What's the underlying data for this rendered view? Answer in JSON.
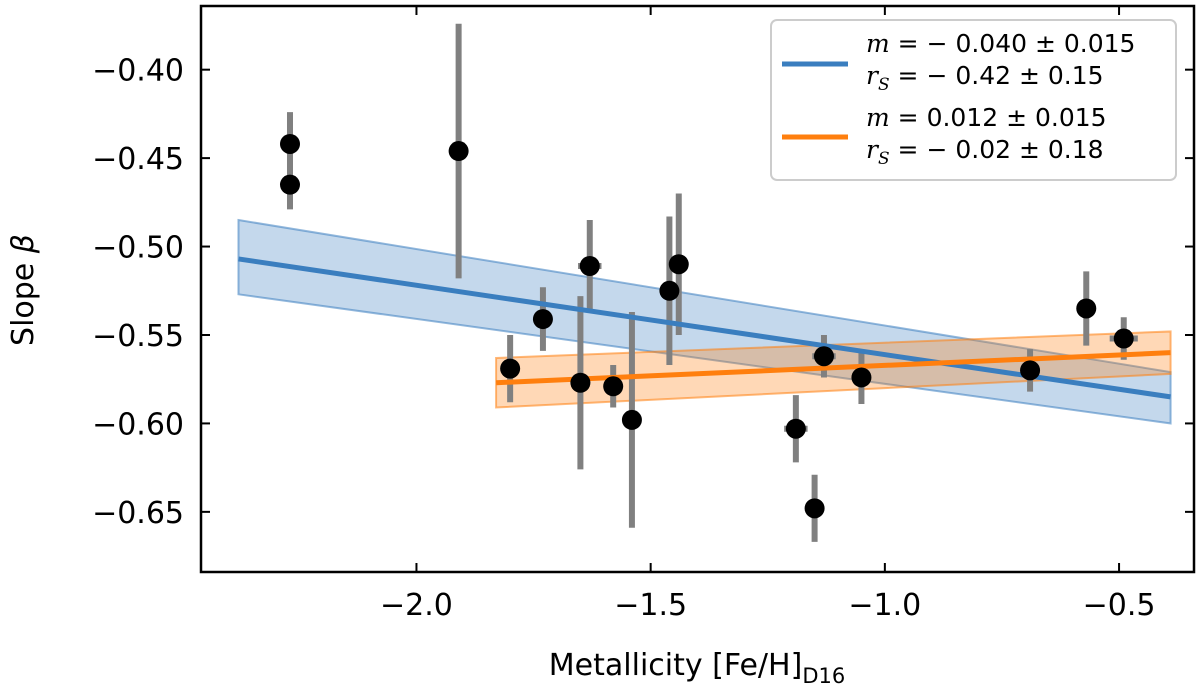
{
  "chart_data": {
    "type": "scatter",
    "xlabel_main": "Metallicity [Fe/H]",
    "xlabel_sub": "D16",
    "ylabel_main": "Slope ",
    "ylabel_symbol": "β",
    "xlim": [
      -2.46,
      -0.34
    ],
    "ylim": [
      -0.684,
      -0.364
    ],
    "xticks": [
      -2.0,
      -1.5,
      -1.0,
      -0.5
    ],
    "xtick_labels": [
      "−2.0",
      "−1.5",
      "−1.0",
      "−0.5"
    ],
    "yticks": [
      -0.4,
      -0.45,
      -0.5,
      -0.55,
      -0.6,
      -0.65
    ],
    "ytick_labels": [
      "−0.40",
      "−0.45",
      "−0.50",
      "−0.55",
      "−0.60",
      "−0.65"
    ],
    "colors": {
      "points": "#000000",
      "errorbars": "#808080",
      "blue": "#3a7ebf",
      "orange": "#ff7f0e"
    },
    "points": [
      {
        "x": -2.27,
        "y": -0.442,
        "xerr": 0.02,
        "yerr": 0.018
      },
      {
        "x": -2.27,
        "y": -0.465,
        "xerr": 0.0,
        "yerr": 0.014
      },
      {
        "x": -1.91,
        "y": -0.446,
        "xerr": 0.0,
        "yerr": 0.072
      },
      {
        "x": -1.8,
        "y": -0.569,
        "xerr": 0.0,
        "yerr": 0.019
      },
      {
        "x": -1.73,
        "y": -0.541,
        "xerr": 0.02,
        "yerr": 0.018
      },
      {
        "x": -1.65,
        "y": -0.577,
        "xerr": 0.0,
        "yerr": 0.049
      },
      {
        "x": -1.63,
        "y": -0.511,
        "xerr": 0.025,
        "yerr": 0.026
      },
      {
        "x": -1.58,
        "y": -0.579,
        "xerr": 0.02,
        "yerr": 0.012
      },
      {
        "x": -1.54,
        "y": -0.598,
        "xerr": 0.0,
        "yerr": 0.061
      },
      {
        "x": -1.46,
        "y": -0.525,
        "xerr": 0.0,
        "yerr": 0.042
      },
      {
        "x": -1.44,
        "y": -0.51,
        "xerr": 0.0,
        "yerr": 0.04
      },
      {
        "x": -1.19,
        "y": -0.603,
        "xerr": 0.025,
        "yerr": 0.019
      },
      {
        "x": -1.15,
        "y": -0.648,
        "xerr": 0.0,
        "yerr": 0.019
      },
      {
        "x": -1.13,
        "y": -0.562,
        "xerr": 0.025,
        "yerr": 0.012
      },
      {
        "x": -1.05,
        "y": -0.574,
        "xerr": 0.0,
        "yerr": 0.015
      },
      {
        "x": -0.69,
        "y": -0.57,
        "xerr": 0.0,
        "yerr": 0.012
      },
      {
        "x": -0.57,
        "y": -0.535,
        "xerr": 0.0,
        "yerr": 0.021
      },
      {
        "x": -0.49,
        "y": -0.552,
        "xerr": 0.03,
        "yerr": 0.012
      }
    ],
    "fits": [
      {
        "name_key": "blue",
        "color": "#3a7ebf",
        "x": [
          -2.38,
          -0.39
        ],
        "y_line": [
          -0.507,
          -0.585
        ],
        "band_upper": [
          -0.485,
          -0.571
        ],
        "band_lower": [
          -0.527,
          -0.6
        ],
        "legend_m": "−0.040 ± 0.015",
        "legend_r": "− 0.42 ± 0.15"
      },
      {
        "name_key": "orange",
        "color": "#ff7f0e",
        "x": [
          -1.83,
          -0.39
        ],
        "y_line": [
          -0.577,
          -0.56
        ],
        "band_upper": [
          -0.563,
          -0.548
        ],
        "band_lower": [
          -0.591,
          -0.572
        ],
        "legend_m": "0.012 ± 0.015",
        "legend_r": "− 0.02 ± 0.18"
      }
    ],
    "legend": {
      "placement": "top-right",
      "m_symbol": "m",
      "r_symbol": "r",
      "r_sub": "S",
      "eq": " = ",
      "entries": [
        {
          "m_value": "− 0.040 ± 0.015",
          "r_value": "− 0.42 ± 0.15"
        },
        {
          "m_value": "0.012 ± 0.015",
          "r_value": "− 0.02 ± 0.18"
        }
      ]
    }
  }
}
